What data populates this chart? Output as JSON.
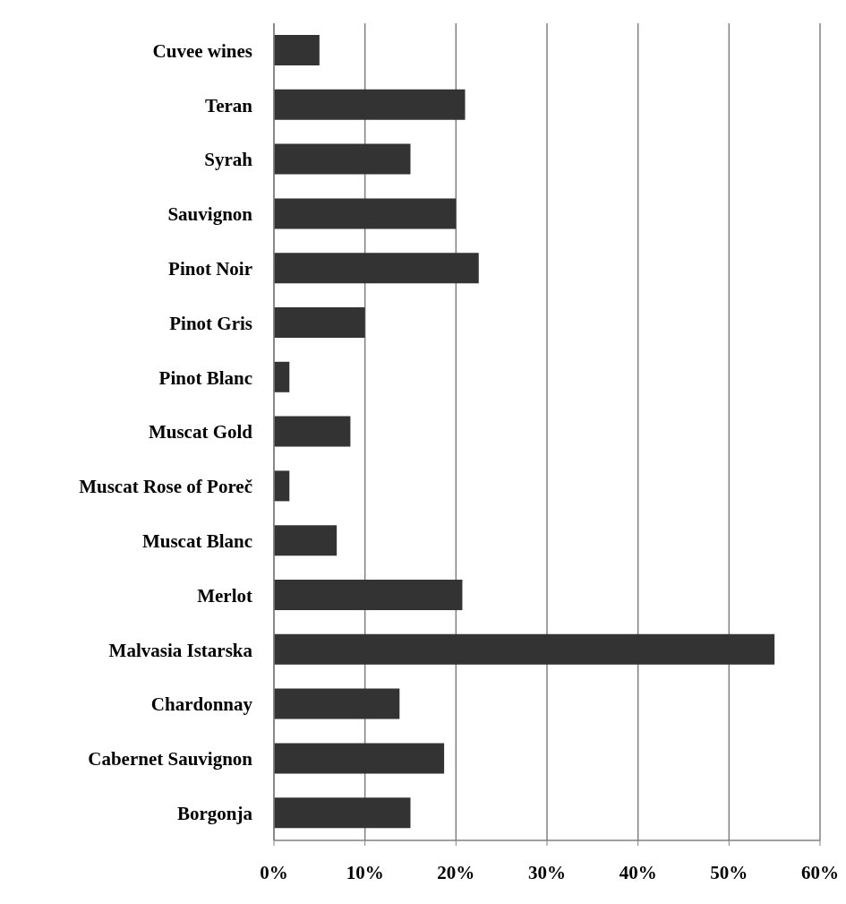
{
  "chart_data": {
    "type": "bar",
    "orientation": "horizontal",
    "categories": [
      "Cuvee wines",
      "Teran",
      "Syrah",
      "Sauvignon",
      "Pinot Noir",
      "Pinot Gris",
      "Pinot Blanc",
      "Muscat Gold",
      "Muscat Rose of Poreč",
      "Muscat Blanc",
      "Merlot",
      "Malvasia Istarska",
      "Chardonnay",
      "Cabernet Sauvignon",
      "Borgonja"
    ],
    "values": [
      5,
      21,
      15,
      20,
      22.5,
      10,
      1.7,
      8.4,
      1.7,
      6.9,
      20.7,
      55,
      13.8,
      18.7,
      15
    ],
    "color": "#333333",
    "xlim": [
      0,
      60
    ],
    "xticks": [
      {
        "value": 0,
        "label": "0%"
      },
      {
        "value": 10,
        "label": "10%"
      },
      {
        "value": 20,
        "label": "20%"
      },
      {
        "value": 30,
        "label": "30%"
      },
      {
        "value": 40,
        "label": "40%"
      },
      {
        "value": 50,
        "label": "50%"
      },
      {
        "value": 60,
        "label": "60%"
      }
    ],
    "grid": "x"
  }
}
